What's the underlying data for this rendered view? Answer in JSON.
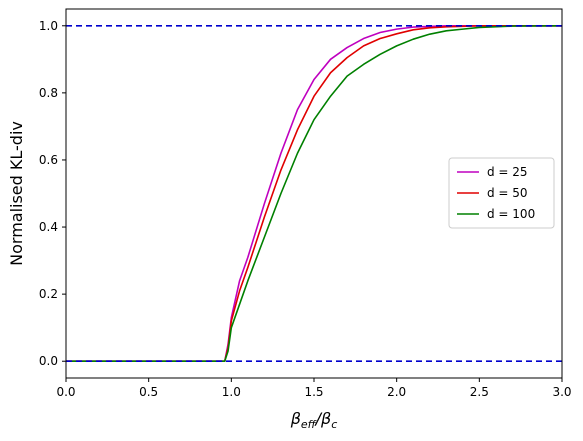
{
  "chart_data": {
    "type": "line",
    "title": "",
    "xlabel_base": "β",
    "xlabel_sub1": "eff",
    "xlabel_sep": "/β",
    "xlabel_sub2": "c",
    "ylabel": "Normalised KL-div",
    "xlim": [
      0.0,
      3.0
    ],
    "ylim": [
      -0.05,
      1.05
    ],
    "xticks": [
      0.0,
      0.5,
      1.0,
      1.5,
      2.0,
      2.5,
      3.0
    ],
    "xtick_labels": [
      "0.0",
      "0.5",
      "1.0",
      "1.5",
      "2.0",
      "2.5",
      "3.0"
    ],
    "yticks": [
      0.0,
      0.2,
      0.4,
      0.6,
      0.8,
      1.0
    ],
    "ytick_labels": [
      "0.0",
      "0.2",
      "0.4",
      "0.6",
      "0.8",
      "1.0"
    ],
    "grid": false,
    "legend_position": "center-right",
    "reference_lines": [
      {
        "y": 1.0,
        "color": "#0000cc",
        "style": "dashed"
      },
      {
        "y": 0.0,
        "color": "#0000cc",
        "style": "dashed"
      }
    ],
    "series": [
      {
        "name": "d = 25",
        "color": "#bf00bf",
        "x": [
          0.0,
          0.96,
          0.98,
          1.0,
          1.05,
          1.1,
          1.2,
          1.3,
          1.4,
          1.5,
          1.6,
          1.7,
          1.8,
          1.9,
          2.0,
          2.1,
          2.2,
          2.3,
          2.5,
          3.0
        ],
        "y": [
          0.0,
          0.0,
          0.05,
          0.13,
          0.24,
          0.31,
          0.47,
          0.62,
          0.75,
          0.84,
          0.9,
          0.935,
          0.962,
          0.98,
          0.99,
          0.996,
          0.998,
          1.0,
          1.0,
          1.0
        ]
      },
      {
        "name": "d = 50",
        "color": "#e00000",
        "x": [
          0.0,
          0.96,
          0.98,
          1.0,
          1.05,
          1.1,
          1.2,
          1.3,
          1.4,
          1.5,
          1.6,
          1.7,
          1.8,
          1.9,
          2.0,
          2.1,
          2.2,
          2.3,
          2.5,
          3.0
        ],
        "y": [
          0.0,
          0.0,
          0.04,
          0.12,
          0.21,
          0.28,
          0.43,
          0.57,
          0.69,
          0.79,
          0.86,
          0.905,
          0.94,
          0.962,
          0.976,
          0.988,
          0.994,
          0.997,
          1.0,
          1.0
        ]
      },
      {
        "name": "d = 100",
        "color": "#008000",
        "x": [
          0.0,
          0.96,
          0.98,
          1.0,
          1.05,
          1.1,
          1.2,
          1.3,
          1.4,
          1.5,
          1.6,
          1.7,
          1.8,
          1.9,
          2.0,
          2.1,
          2.2,
          2.3,
          2.4,
          2.5,
          2.7,
          3.0
        ],
        "y": [
          0.0,
          0.0,
          0.03,
          0.1,
          0.17,
          0.24,
          0.37,
          0.5,
          0.62,
          0.72,
          0.79,
          0.85,
          0.885,
          0.915,
          0.94,
          0.96,
          0.975,
          0.985,
          0.99,
          0.995,
          0.999,
          1.0
        ]
      }
    ]
  }
}
